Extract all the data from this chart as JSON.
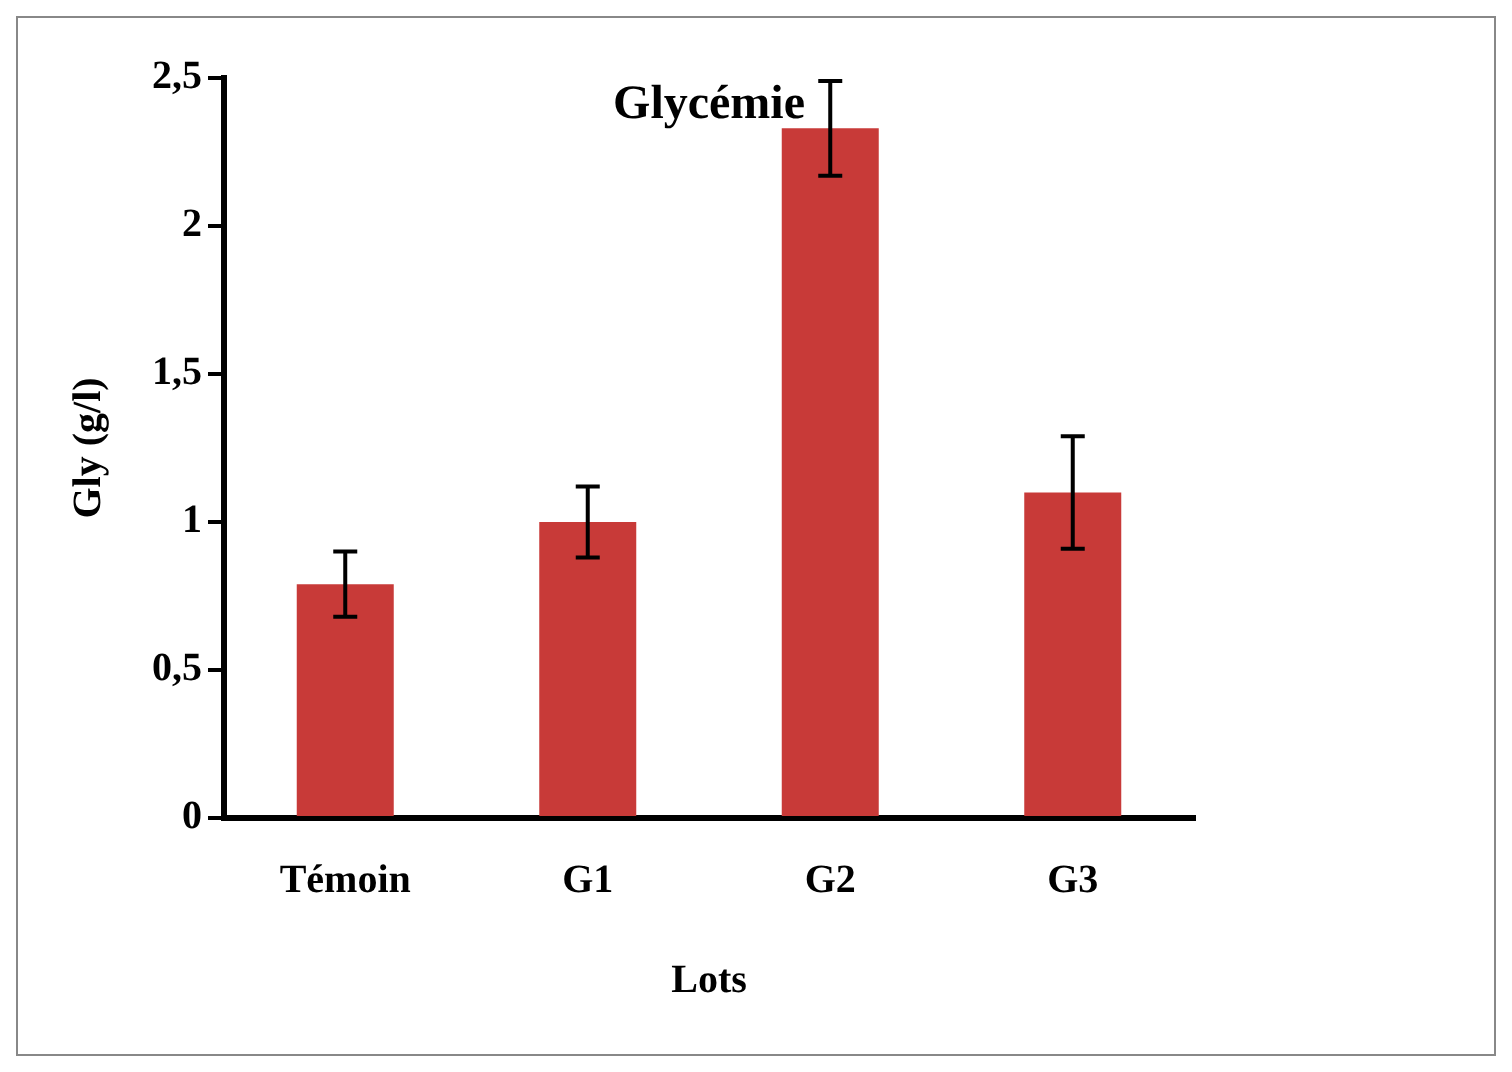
{
  "chart_data": {
    "type": "bar",
    "title": "Glycémie",
    "xlabel": "Lots",
    "ylabel": "Gly (g/l)",
    "categories": [
      "Témoin",
      "G1",
      "G2",
      "G3"
    ],
    "values": [
      0.79,
      1.0,
      2.33,
      1.1
    ],
    "errors": [
      0.11,
      0.12,
      0.16,
      0.19
    ],
    "color": "#c83a38",
    "ylim": [
      0,
      2.5
    ],
    "yticks": [
      {
        "value": 0,
        "label": "0"
      },
      {
        "value": 0.5,
        "label": "0,5"
      },
      {
        "value": 1,
        "label": "1"
      },
      {
        "value": 1.5,
        "label": "1,5"
      },
      {
        "value": 2,
        "label": "2"
      },
      {
        "value": 2.5,
        "label": "2,5"
      }
    ],
    "grid": false,
    "legend": false
  }
}
